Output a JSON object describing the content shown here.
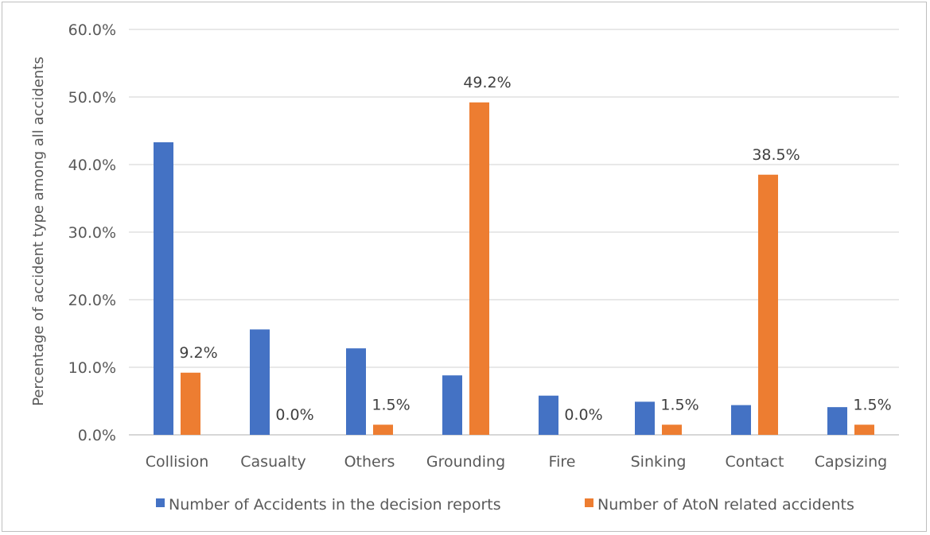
{
  "chart_data": {
    "type": "bar",
    "title": "",
    "xlabel": "",
    "ylabel": "Percentage of accident type among all accidents",
    "ylim": [
      0,
      60
    ],
    "yticks": [
      "0.0%",
      "10.0%",
      "20.0%",
      "30.0%",
      "40.0%",
      "50.0%",
      "60.0%"
    ],
    "categories": [
      "Collision",
      "Casualty",
      "Others",
      "Grounding",
      "Fire",
      "Sinking",
      "Contact",
      "Capsizing"
    ],
    "series": [
      {
        "name": "Number of Accidents in the decision reports",
        "color": "#4472c4",
        "values": [
          43.3,
          15.6,
          12.8,
          8.8,
          5.8,
          4.9,
          4.4,
          4.1
        ],
        "labels": [
          "",
          "",
          "",
          "",
          "",
          "",
          "",
          ""
        ]
      },
      {
        "name": "Number of AtoN related accidents",
        "color": "#ed7d31",
        "values": [
          9.2,
          0.0,
          1.5,
          49.2,
          0.0,
          1.5,
          38.5,
          1.5
        ],
        "labels": [
          "9.2%",
          "0.0%",
          "1.5%",
          "49.2%",
          "0.0%",
          "1.5%",
          "38.5%",
          "1.5%"
        ]
      }
    ],
    "grid": true,
    "legend": "bottom"
  }
}
